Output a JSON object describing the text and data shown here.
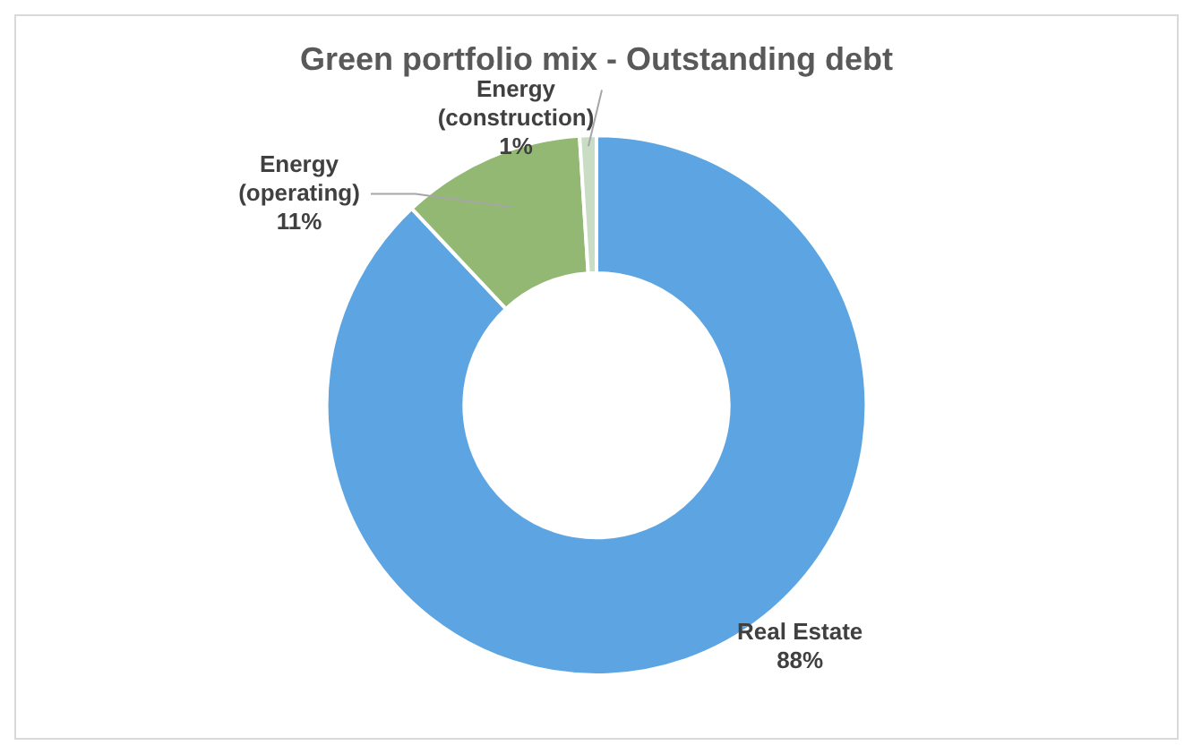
{
  "chart_data": {
    "type": "donut",
    "title": "Green portfolio mix - Outstanding debt",
    "categories": [
      "Real Estate",
      "Energy (operating)",
      "Energy (construction)"
    ],
    "values": [
      88,
      11,
      1
    ],
    "colors": [
      "#5ca5e2",
      "#93b874",
      "#c9dcc4"
    ],
    "value_labels": [
      "88%",
      "11%",
      "1%"
    ],
    "legend": false
  }
}
